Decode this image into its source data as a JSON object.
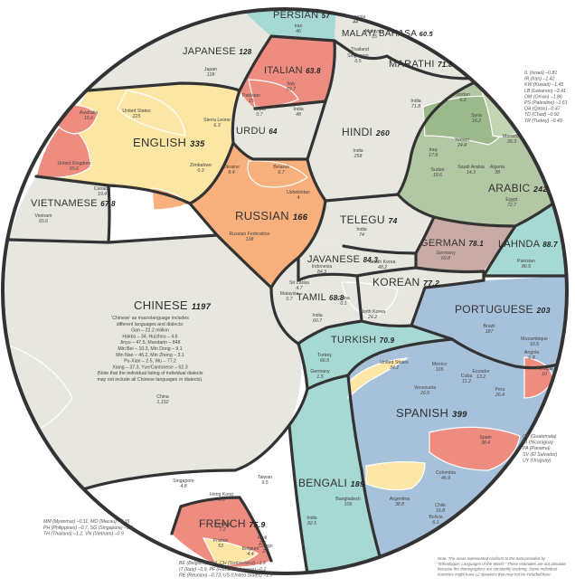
{
  "chart_data": {
    "type": "treemap",
    "languages": [
      {
        "name": "PERSIAN",
        "value": 57,
        "color": "#a6d8d4"
      },
      {
        "name": "MALAY/ BAHASA",
        "value": 60.5,
        "color": "#e7e7df"
      },
      {
        "name": "MARATHI",
        "value": 71.8,
        "color": "#e7e7df"
      },
      {
        "name": "JAPANESE",
        "value": 128,
        "color": "#e7e7df"
      },
      {
        "name": "ITALIAN",
        "value": 63.8,
        "color": "#ee8c80"
      },
      {
        "name": "URDU",
        "value": 64,
        "color": "#e7e7df"
      },
      {
        "name": "HINDI",
        "value": 260,
        "color": "#e7e7df"
      },
      {
        "name": "ENGLISH",
        "value": 335,
        "color": "#fbe6a4"
      },
      {
        "name": "ARABIC",
        "value": 242,
        "color": "#b2c7a4"
      },
      {
        "name": "VIETNAMESE",
        "value": 67.8,
        "color": "#e7e7df"
      },
      {
        "name": "RUSSIAN",
        "value": 166,
        "color": "#f8b07c"
      },
      {
        "name": "TELEGU",
        "value": 74,
        "color": "#e7e7df"
      },
      {
        "name": "GERMAN",
        "value": 78.1,
        "color": "#c9aba5"
      },
      {
        "name": "LAHNDA",
        "value": 88.7,
        "color": "#a6d8d4"
      },
      {
        "name": "JAVANESE",
        "value": 84.3,
        "color": "#e7e7df"
      },
      {
        "name": "KOREAN",
        "value": 77.2,
        "color": "#e7e7df"
      },
      {
        "name": "CHINESE",
        "value": 1197,
        "color": "#e7e7df"
      },
      {
        "name": "TAMIL",
        "value": 68.8,
        "color": "#e7e7df"
      },
      {
        "name": "PORTUGUESE",
        "value": 203,
        "color": "#a7c1da"
      },
      {
        "name": "TURKISH",
        "value": 70.9,
        "color": "#a6d8d4"
      },
      {
        "name": "SPANISH",
        "value": 399,
        "color": "#a7c1da"
      },
      {
        "name": "BENGALI",
        "value": 189,
        "color": "#a6d8d4"
      },
      {
        "name": "FRENCH",
        "value": 75.9,
        "color": "#ee8c80"
      }
    ],
    "countries": [
      {
        "name": "Iran",
        "value": "46"
      },
      {
        "name": "Indonesia",
        "value": "44"
      },
      {
        "name": "Malaysia",
        "value": "15"
      },
      {
        "name": "Thailand",
        "value": ""
      },
      {
        "name": "Singapore",
        "value": "0.5"
      },
      {
        "name": "Japan",
        "value": "128"
      },
      {
        "name": "Italy",
        "value": "59.7"
      },
      {
        "name": "Pakistan",
        "value": "15"
      },
      {
        "name": "Nepal",
        "value": "0.7"
      },
      {
        "name": "India",
        "value": "48"
      },
      {
        "name": "India",
        "value": "258"
      },
      {
        "name": "India",
        "value": "71.8"
      },
      {
        "name": "United States",
        "value": "225"
      },
      {
        "name": "Australia",
        "value": "15.6"
      },
      {
        "name": "United Kingdom",
        "value": "55.6"
      },
      {
        "name": "Canada",
        "value": "19.4"
      },
      {
        "name": "Sierra Leone",
        "value": "6.3"
      },
      {
        "name": "Zimbabwe",
        "value": "0.3"
      },
      {
        "name": "Vietnam",
        "value": "65.6"
      },
      {
        "name": "Ukraine",
        "value": "8.4"
      },
      {
        "name": "Belarus",
        "value": "6.7"
      },
      {
        "name": "Russian Federation",
        "value": "138"
      },
      {
        "name": "Uzbekistan",
        "value": "4"
      },
      {
        "name": "India",
        "value": "74"
      },
      {
        "name": "Indonesia",
        "value": "84.3"
      },
      {
        "name": "South Korea",
        "value": "48.2"
      },
      {
        "name": "North Korea",
        "value": "24.2"
      },
      {
        "name": "China",
        "value": "0.1"
      },
      {
        "name": "Malaysia",
        "value": "0.7"
      },
      {
        "name": "Sri Lanka",
        "value": "4.7"
      },
      {
        "name": "India",
        "value": "60.7"
      },
      {
        "name": "Germany",
        "value": "69.8"
      },
      {
        "name": "Pakistan",
        "value": "86.5"
      },
      {
        "name": "Egypt",
        "value": "72.7"
      },
      {
        "name": "Algeria",
        "value": "38"
      },
      {
        "name": "Morocco",
        "value": "26.3"
      },
      {
        "name": "Saudi Arabia",
        "value": "14.3"
      },
      {
        "name": "Iraq",
        "value": "17.9"
      },
      {
        "name": "Yemen",
        "value": "24.4"
      },
      {
        "name": "Sudan",
        "value": "19.6"
      },
      {
        "name": "Syria",
        "value": "16.2"
      },
      {
        "name": "Jordan",
        "value": "6.2"
      },
      {
        "name": "China",
        "value": "1,152"
      },
      {
        "name": "Brazil",
        "value": "187"
      },
      {
        "name": "Mozambique",
        "value": "10.5"
      },
      {
        "name": "Angola",
        "value": "6.8"
      },
      {
        "name": "Portugal",
        "value": "10"
      },
      {
        "name": "Turkey",
        "value": "66.5"
      },
      {
        "name": "Germany",
        "value": "1.5"
      },
      {
        "name": "United States",
        "value": "34.2"
      },
      {
        "name": "Mexico",
        "value": "105"
      },
      {
        "name": "Venezuela",
        "value": "26.5"
      },
      {
        "name": "Colombia",
        "value": "46.9"
      },
      {
        "name": "Peru",
        "value": "26.4"
      },
      {
        "name": "Cuba",
        "value": "11.2"
      },
      {
        "name": "Ecuador",
        "value": "13.2"
      },
      {
        "name": "Spain",
        "value": "38.4"
      },
      {
        "name": "Argentina",
        "value": "38.8"
      },
      {
        "name": "Chile",
        "value": "16.8"
      },
      {
        "name": "Bolivia",
        "value": "6.1"
      },
      {
        "name": "Bangladesh",
        "value": "106"
      },
      {
        "name": "India",
        "value": "82.5"
      },
      {
        "name": "France",
        "value": "53"
      },
      {
        "name": "Canada",
        "value": "7.2"
      },
      {
        "name": "Congo",
        "value": "2.5"
      },
      {
        "name": "Haiti",
        "value": "2.7"
      },
      {
        "name": "Belgium",
        "value": "4.4"
      },
      {
        "name": "Hong Kong",
        "value": "6.6"
      },
      {
        "name": "Taiwan",
        "value": "9.5"
      },
      {
        "name": "Singapore",
        "value": "4.8"
      }
    ],
    "side_notes": [
      {
        "text": "IL (Israel) –0.81"
      },
      {
        "text": "IR (Iran) –1.42"
      },
      {
        "text": "KW (Kuwait) –1.45"
      },
      {
        "text": "LB (Lebanon) –3.41"
      },
      {
        "text": "OM (Oman) –1.86"
      },
      {
        "text": "PS (Palestine) –1.61"
      },
      {
        "text": "QA (Qatar) –0.47"
      },
      {
        "text": "TD (Chad) –0.92"
      },
      {
        "text": "TR (Turkey) –0.49"
      }
    ],
    "spanish_notes": [
      {
        "text": "GT (Guatemala)"
      },
      {
        "text": "NI (Nicaragua)"
      },
      {
        "text": "PA (Panama)"
      },
      {
        "text": "SV (El Salvador)"
      },
      {
        "text": "UY (Uruguay)"
      }
    ],
    "asia_notes": [
      {
        "text": "MM (Myanmar) –0.11, MO (Macau) –0.35"
      },
      {
        "text": "PH (Philippines) –0.7, SG (Singapore) –1.8"
      },
      {
        "text": "TH (Thailand) –1.2, VN (Vietnam) –0.9"
      }
    ],
    "french_notes": [
      {
        "text": "BE (Belgium) –3.9, CH (Switzerland) –1.9"
      },
      {
        "text": "IT (Italy) –0.9, PF (French Polynesia) –0.2"
      },
      {
        "text": "RE (Réunion) –0.73, US (United States) –1.9"
      }
    ],
    "chinese_description": [
      {
        "text": "‘Chinese’ as macrolanguage includes"
      },
      {
        "text": "different languages and dialects:"
      },
      {
        "text": "Gan – 22.2 million"
      },
      {
        "text": "Hakka – 34, Huizhou – 4.6"
      },
      {
        "text": "Jinyu – 47.5, Mandarin – 848"
      },
      {
        "text": "Min Bei – 10.3, Min Dong – 9.1"
      },
      {
        "text": "Min Nan – 46.2, Min Zhong – 3.1"
      },
      {
        "text": "Pu-Xian – 2.5, Wu – 77.2"
      },
      {
        "text": "Xiang – 37.3, Yue/Cantonese – 62.3"
      },
      {
        "text": "(Note that the individual listing of individual dialects"
      },
      {
        "text": "may not include all Chinese languages or dialects)."
      }
    ],
    "footnote": [
      {
        "text": "Note: The areas represented conform to the data provided by"
      },
      {
        "text": "\"Ethnologue: Languages of the World\". These estimates are not absolute"
      },
      {
        "text": "because the demographics are constantly evolving. Some individual"
      },
      {
        "text": "countries might have L2 speakers that may not be included here."
      }
    ]
  }
}
